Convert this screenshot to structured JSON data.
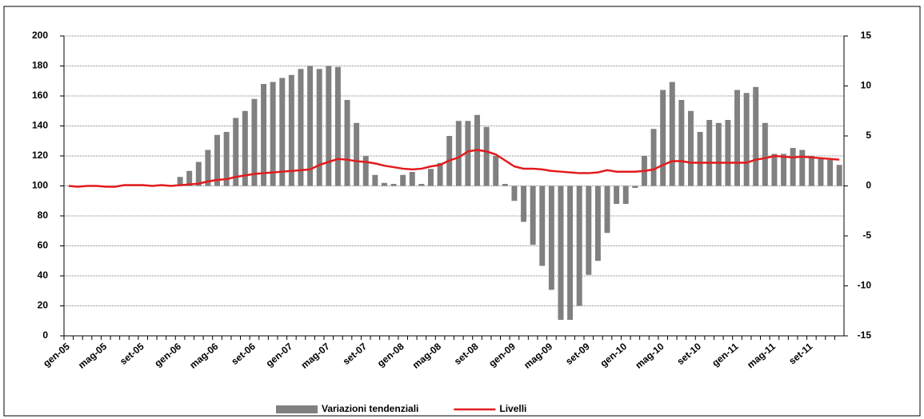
{
  "chart_data": {
    "type": "bar",
    "categories": [
      "gen-05",
      null,
      null,
      null,
      "mag-05",
      null,
      null,
      null,
      "set-05",
      null,
      null,
      null,
      "gen-06",
      null,
      null,
      null,
      "mag-06",
      null,
      null,
      null,
      "set-06",
      null,
      null,
      null,
      "gen-07",
      null,
      null,
      null,
      "mag-07",
      null,
      null,
      null,
      "set-07",
      null,
      null,
      null,
      "gen-08",
      null,
      null,
      null,
      "mag-08",
      null,
      null,
      null,
      "set-08",
      null,
      null,
      null,
      "gen-09",
      null,
      null,
      null,
      "mag-09",
      null,
      null,
      null,
      "set-09",
      null,
      null,
      null,
      "gen-10",
      null,
      null,
      null,
      "mag-10",
      null,
      null,
      null,
      "set-10",
      null,
      null,
      null,
      "gen-11",
      null,
      null,
      null,
      "mag-11",
      null,
      null,
      null,
      "set-11",
      null,
      null,
      null
    ],
    "series": [
      {
        "name": "Variazioni tendenziali",
        "type": "bar",
        "color": "#808080",
        "axis": "y2",
        "values": [
          null,
          null,
          null,
          null,
          null,
          null,
          null,
          null,
          null,
          null,
          null,
          null,
          0.9,
          1.5,
          2.4,
          3.6,
          5.1,
          5.4,
          6.8,
          7.5,
          8.7,
          10.2,
          10.4,
          10.8,
          11.1,
          11.7,
          12,
          11.7,
          12,
          11.9,
          8.6,
          6.3,
          3,
          1.1,
          0.3,
          0.2,
          1.1,
          1.4,
          0.2,
          1.7,
          2.3,
          5,
          6.5,
          6.5,
          7.1,
          5.9,
          3,
          0.2,
          -1.5,
          -3.6,
          -5.9,
          -8,
          -10.4,
          -13.4,
          -13.4,
          -12,
          -8.9,
          -7.5,
          -4.7,
          -1.8,
          -1.8,
          -0.2,
          3,
          5.7,
          9.6,
          10.4,
          8.6,
          7.5,
          5.4,
          6.6,
          6.3,
          6.6,
          9.6,
          9.3,
          9.9,
          6.3,
          3.2,
          3.2,
          3.8,
          3.6,
          3,
          2.7,
          2.6,
          2.1
        ]
      },
      {
        "name": "Livelli",
        "type": "line",
        "color": "#e41a1c",
        "values": [
          100,
          99.5,
          100,
          100,
          99.5,
          99.5,
          100.5,
          100.5,
          100.5,
          100,
          100.5,
          100,
          100.5,
          101,
          101.5,
          103,
          104,
          104.5,
          106,
          107,
          108,
          108.5,
          109,
          109.5,
          110,
          110.5,
          111,
          114,
          116,
          118,
          117.5,
          116.5,
          116,
          115,
          113.5,
          112.5,
          111.5,
          111,
          111.5,
          113,
          114,
          117,
          119,
          123,
          124,
          123,
          121,
          117,
          113,
          111.5,
          111.5,
          111,
          110,
          109.5,
          109,
          108.5,
          108.5,
          109,
          110.5,
          109.5,
          109.5,
          109.5,
          110,
          111,
          114,
          116.5,
          116.5,
          115.5,
          115.5,
          115.5,
          115.5,
          115.5,
          115.5,
          115.5,
          117.5,
          118.5,
          120,
          119.5,
          119,
          119.5,
          119,
          118.5,
          118,
          117.5
        ]
      }
    ],
    "ylim": [
      0,
      200
    ],
    "yticks": [
      0,
      20,
      40,
      60,
      80,
      100,
      120,
      140,
      160,
      180,
      200
    ],
    "y2lim": [
      -15,
      15
    ],
    "y2ticks": [
      -15,
      -10,
      -5,
      0,
      5,
      10,
      15
    ],
    "grid": true
  }
}
